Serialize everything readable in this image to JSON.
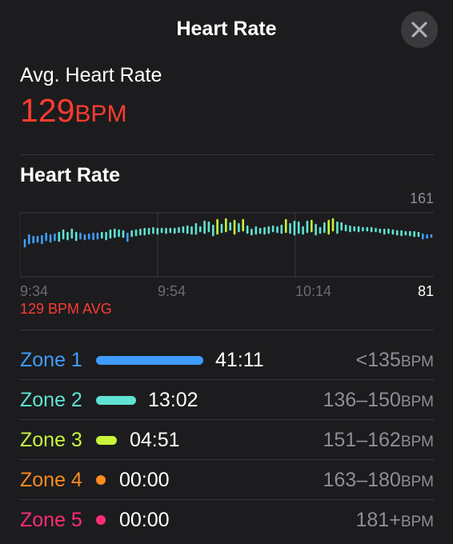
{
  "header": {
    "title": "Heart Rate",
    "close_icon": "close-icon"
  },
  "summary": {
    "label": "Avg. Heart Rate",
    "value": "129",
    "unit": "BPM"
  },
  "chart_section": {
    "heading": "Heart Rate",
    "avg_label": "129 BPM AVG"
  },
  "chart_data": {
    "type": "bar",
    "y_max_label": "161",
    "y_min_label": "81",
    "ylim": [
      81,
      161
    ],
    "x_ticks": [
      "9:34",
      "9:54",
      "10:14"
    ],
    "bars": [
      [
        119,
        127
      ],
      [
        123,
        133
      ],
      [
        124,
        131
      ],
      [
        125,
        131
      ],
      [
        123,
        132
      ],
      [
        127,
        135
      ],
      [
        125,
        133
      ],
      [
        127,
        134
      ],
      [
        126,
        136
      ],
      [
        129,
        139
      ],
      [
        128,
        136
      ],
      [
        130,
        140
      ],
      [
        127,
        136
      ],
      [
        129,
        135
      ],
      [
        128,
        133
      ],
      [
        129,
        134
      ],
      [
        128,
        135
      ],
      [
        129,
        135
      ],
      [
        130,
        136
      ],
      [
        128,
        136
      ],
      [
        130,
        139
      ],
      [
        131,
        140
      ],
      [
        132,
        139
      ],
      [
        131,
        138
      ],
      [
        126,
        135
      ],
      [
        132,
        138
      ],
      [
        133,
        139
      ],
      [
        134,
        140
      ],
      [
        134,
        141
      ],
      [
        135,
        141
      ],
      [
        136,
        142
      ],
      [
        135,
        141
      ],
      [
        137,
        141
      ],
      [
        136,
        141
      ],
      [
        137,
        141
      ],
      [
        136,
        141
      ],
      [
        137,
        142
      ],
      [
        137,
        143
      ],
      [
        136,
        144
      ],
      [
        135,
        143
      ],
      [
        135,
        147
      ],
      [
        138,
        143
      ],
      [
        136,
        150
      ],
      [
        138,
        149
      ],
      [
        133,
        145
      ],
      [
        135,
        152
      ],
      [
        137,
        146
      ],
      [
        138,
        153
      ],
      [
        140,
        148
      ],
      [
        135,
        151
      ],
      [
        138,
        147
      ],
      [
        139,
        152
      ],
      [
        136,
        144
      ],
      [
        134,
        140
      ],
      [
        135,
        143
      ],
      [
        136,
        141
      ],
      [
        135,
        142
      ],
      [
        136,
        143
      ],
      [
        138,
        144
      ],
      [
        137,
        143
      ],
      [
        136,
        145
      ],
      [
        137,
        152
      ],
      [
        136,
        147
      ],
      [
        134,
        150
      ],
      [
        136,
        149
      ],
      [
        135,
        143
      ],
      [
        137,
        150
      ],
      [
        138,
        151
      ],
      [
        134,
        146
      ],
      [
        136,
        142
      ],
      [
        137,
        148
      ],
      [
        135,
        151
      ],
      [
        139,
        153
      ],
      [
        136,
        149
      ],
      [
        140,
        148
      ],
      [
        139,
        145
      ],
      [
        138,
        144
      ],
      [
        139,
        143
      ],
      [
        138,
        143
      ],
      [
        139,
        142
      ],
      [
        139,
        142
      ],
      [
        138,
        142
      ],
      [
        138,
        141
      ],
      [
        137,
        140
      ],
      [
        135,
        140
      ],
      [
        136,
        140
      ],
      [
        135,
        139
      ],
      [
        134,
        138
      ],
      [
        133,
        138
      ],
      [
        134,
        137
      ],
      [
        133,
        137
      ],
      [
        132,
        137
      ],
      [
        132,
        136
      ],
      [
        129,
        134
      ],
      [
        130,
        133
      ],
      [
        131,
        133
      ]
    ]
  },
  "zones": [
    {
      "name": "Zone 1",
      "time": "41:11",
      "range": "<135",
      "unit": "BPM",
      "color": "#409cff",
      "fraction": 0.7
    },
    {
      "name": "Zone 2",
      "time": "13:02",
      "range": "136–150",
      "unit": "BPM",
      "color": "#5fe3d3",
      "fraction": 0.22
    },
    {
      "name": "Zone 3",
      "time": "04:51",
      "range": "151–162",
      "unit": "BPM",
      "color": "#c8f53a",
      "fraction": 0.08
    },
    {
      "name": "Zone 4",
      "time": "00:00",
      "range": "163–180",
      "unit": "BPM",
      "color": "#ff8a1f",
      "fraction": 0
    },
    {
      "name": "Zone 5",
      "time": "00:00",
      "range": "181+",
      "unit": "BPM",
      "color": "#ff2d75",
      "fraction": 0
    }
  ]
}
